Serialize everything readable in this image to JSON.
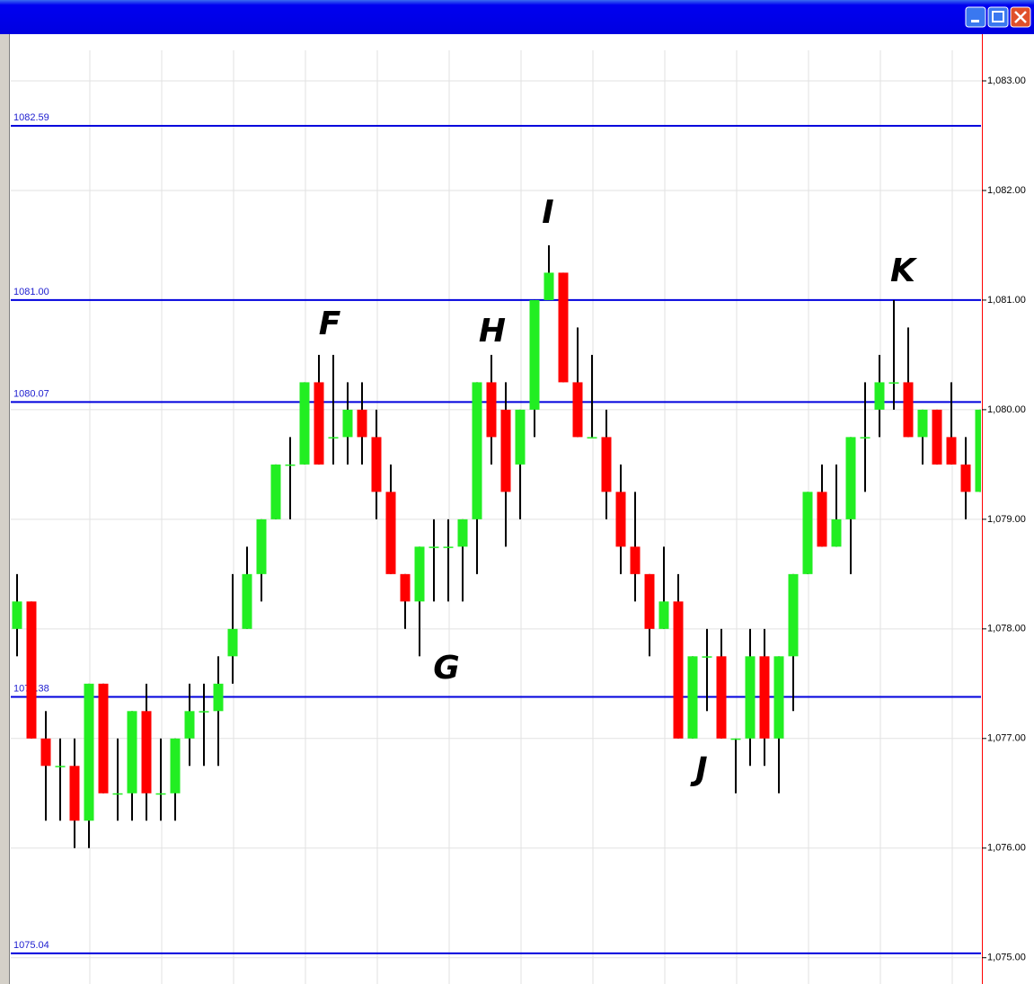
{
  "chart_data": {
    "type": "candlestick",
    "open": [
      1078.0,
      1078.25,
      1077.0,
      1076.75,
      1076.75,
      1076.25,
      1077.5,
      1076.5,
      1076.5,
      1077.25,
      1076.5,
      1076.5,
      1077.0,
      1077.25,
      1077.25,
      1077.75,
      1078.0,
      1078.5,
      1079.0,
      1079.5,
      1079.5,
      1080.25,
      1079.75,
      1079.75,
      1080.0,
      1079.75,
      1079.25,
      1078.5,
      1078.25,
      1078.75,
      1078.75,
      1078.75,
      1079.0,
      1080.25,
      1080.0,
      1079.5,
      1080.0,
      1081.0,
      1081.25,
      1080.25,
      1079.75,
      1079.75,
      1079.25,
      1078.75,
      1078.5,
      1078.0,
      1078.25,
      1077.0,
      1077.75,
      1077.75,
      1077.0,
      1077.0,
      1077.75,
      1077.0,
      1077.75,
      1078.5,
      1079.25,
      1078.75,
      1079.0,
      1079.75,
      1080.0,
      1080.25,
      1080.25,
      1079.75,
      1080.0,
      1079.75,
      1079.5,
      1079.25
    ],
    "high": [
      1078.5,
      1078.25,
      1077.25,
      1077.0,
      1077.0,
      1077.5,
      1077.5,
      1077.0,
      1077.25,
      1077.5,
      1077.0,
      1077.0,
      1077.5,
      1077.5,
      1077.75,
      1078.5,
      1078.75,
      1079.0,
      1079.5,
      1079.75,
      1080.25,
      1080.5,
      1080.5,
      1080.25,
      1080.25,
      1080.0,
      1079.5,
      1078.5,
      1078.75,
      1079.0,
      1079.0,
      1079.0,
      1080.25,
      1080.5,
      1080.25,
      1080.0,
      1081.0,
      1081.5,
      1081.25,
      1080.75,
      1080.5,
      1080.0,
      1079.5,
      1079.25,
      1078.5,
      1078.75,
      1078.5,
      1077.75,
      1078.0,
      1078.0,
      1077.0,
      1078.0,
      1078.0,
      1077.75,
      1078.5,
      1079.25,
      1079.5,
      1079.5,
      1079.75,
      1080.25,
      1080.5,
      1081.0,
      1080.75,
      1080.0,
      1080.0,
      1080.25,
      1079.75,
      1080.0
    ],
    "low": [
      1077.75,
      1077.0,
      1076.25,
      1076.25,
      1076.0,
      1076.0,
      1076.5,
      1076.25,
      1076.25,
      1076.25,
      1076.25,
      1076.25,
      1076.75,
      1076.75,
      1076.75,
      1077.5,
      1078.0,
      1078.25,
      1079.0,
      1079.0,
      1079.5,
      1079.5,
      1079.5,
      1079.5,
      1079.5,
      1079.0,
      1078.5,
      1078.0,
      1077.75,
      1078.25,
      1078.25,
      1078.25,
      1078.5,
      1079.5,
      1078.75,
      1079.0,
      1079.75,
      1081.0,
      1080.25,
      1079.75,
      1079.75,
      1079.0,
      1078.5,
      1078.25,
      1077.75,
      1078.0,
      1077.0,
      1077.0,
      1077.25,
      1077.0,
      1076.5,
      1076.75,
      1076.75,
      1076.5,
      1077.25,
      1078.5,
      1078.75,
      1078.75,
      1078.5,
      1079.25,
      1079.75,
      1080.0,
      1079.75,
      1079.5,
      1079.5,
      1079.5,
      1079.0,
      1079.25
    ],
    "close": [
      1078.25,
      1077.0,
      1076.75,
      1076.75,
      1076.25,
      1077.5,
      1076.5,
      1076.5,
      1077.25,
      1076.5,
      1076.5,
      1077.0,
      1077.25,
      1077.25,
      1077.5,
      1078.0,
      1078.5,
      1079.0,
      1079.5,
      1079.5,
      1080.25,
      1079.5,
      1079.75,
      1080.0,
      1079.75,
      1079.25,
      1078.5,
      1078.25,
      1078.75,
      1078.75,
      1078.75,
      1079.0,
      1080.25,
      1079.75,
      1079.25,
      1080.0,
      1081.0,
      1081.25,
      1080.25,
      1079.75,
      1079.75,
      1079.25,
      1078.75,
      1078.5,
      1078.0,
      1078.25,
      1077.0,
      1077.75,
      1077.75,
      1077.0,
      1077.0,
      1077.75,
      1077.0,
      1077.75,
      1078.5,
      1079.25,
      1078.75,
      1079.0,
      1079.75,
      1079.75,
      1080.25,
      1080.25,
      1079.75,
      1080.0,
      1079.5,
      1079.5,
      1079.25,
      1080.0
    ],
    "up_color": "#22ee22",
    "down_color": "#ff0000",
    "ylim": [
      1074.76,
      1083.41
    ],
    "yticks": [
      {
        "value": 1075,
        "label": "1,075.00"
      },
      {
        "value": 1076,
        "label": "1,076.00"
      },
      {
        "value": 1077,
        "label": "1,077.00"
      },
      {
        "value": 1078,
        "label": "1,078.00"
      },
      {
        "value": 1079,
        "label": "1,079.00"
      },
      {
        "value": 1080,
        "label": "1,080.00"
      },
      {
        "value": 1081,
        "label": "1,081.00"
      },
      {
        "value": 1082,
        "label": "1,082.00"
      },
      {
        "value": 1083,
        "label": "1,083.00"
      }
    ],
    "levels": [
      {
        "value": 1082.59,
        "label": "1082.59"
      },
      {
        "value": 1081,
        "label": "1081.00"
      },
      {
        "value": 1080.07,
        "label": "1080.07"
      },
      {
        "value": 1077.38,
        "label": "1077.38"
      },
      {
        "value": 1075.04,
        "label": "1075.04"
      }
    ],
    "level_color": "#0000dd",
    "annotations": [
      "F",
      "G",
      "H",
      "I",
      "J",
      "K"
    ],
    "grid": true
  }
}
